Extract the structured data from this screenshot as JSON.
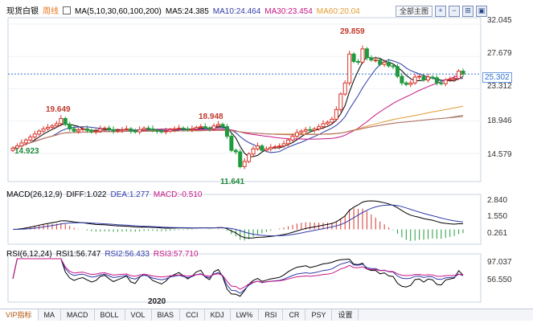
{
  "header": {
    "title": "现货白银",
    "period": "周线",
    "ma_params": "MA(5,10,30,60,100,200)",
    "ma5": "MA5:24.385",
    "ma10": "MA10:24.464",
    "ma30": "MA30:23.454",
    "ma60": "MA60:20.04"
  },
  "toolbar": {
    "select_label": "全部主图",
    "btn_plus": "+",
    "btn_minus": "−",
    "btn_expand": "⊞",
    "btn_square": "▣"
  },
  "price_panel": {
    "y_ticks": [
      "32.045",
      "27.679",
      "23.312",
      "18.946",
      "14.579"
    ],
    "current_price_label": "25.302",
    "annotations": {
      "high_main": "29.859",
      "high_left": "19.649",
      "high_mid": "18.948",
      "low_mid": "11.641",
      "low_left": "14.923"
    }
  },
  "macd_panel": {
    "title": "MACD(26,12,9)",
    "diff": "DIFF:1.022",
    "dea": "DEA:1.277",
    "macd": "MACD:-0.510",
    "y_ticks": [
      "2.840",
      "1.550",
      "0.261"
    ]
  },
  "rsi_panel": {
    "title": "RSI(6,12,24)",
    "rsi1": "RSI1:56.747",
    "rsi2": "RSI2:56.433",
    "rsi3": "RSI3:57.710",
    "y_ticks": [
      "97.037",
      "56.550"
    ]
  },
  "x_axis": {
    "year_label": "2020"
  },
  "tabs": [
    "VIP指标",
    "MA",
    "MACD",
    "BOLL",
    "VOL",
    "BIAS",
    "CCI",
    "KDJ",
    "LW%",
    "RSI",
    "CR",
    "PSY",
    "设置"
  ],
  "colors": {
    "up": "#d9342b",
    "down": "#1f9a3c",
    "ma5": "#000000",
    "ma10": "#2f3aa8",
    "ma30": "#c71585",
    "ma60": "#e39b2f",
    "ma100": "#9b8a6a",
    "ma200": "#b9746a",
    "accent": "#2f6fd1"
  },
  "chart_data": {
    "type": "candlestick",
    "title": "现货白银",
    "period": "weekly",
    "ylim": [
      11.0,
      32.045
    ],
    "y_ticks": [
      32.045,
      27.679,
      23.312,
      18.946,
      14.579
    ],
    "current_price": 25.302,
    "close_series": [
      15.3,
      15.6,
      16.0,
      16.4,
      16.8,
      17.2,
      17.6,
      17.9,
      18.1,
      18.3,
      18.6,
      19.3,
      18.5,
      17.9,
      17.6,
      17.8,
      17.9,
      17.7,
      17.5,
      17.6,
      17.9,
      18.0,
      17.8,
      17.6,
      17.7,
      17.8,
      17.9,
      17.6,
      17.5,
      17.8,
      18.0,
      17.9,
      17.7,
      17.6,
      17.5,
      17.6,
      17.8,
      17.9,
      18.0,
      17.9,
      17.8,
      17.9,
      18.1,
      18.2,
      18.0,
      17.9,
      18.3,
      18.5,
      18.2,
      16.9,
      15.0,
      14.8,
      12.8,
      13.5,
      14.5,
      15.2,
      15.6,
      15.0,
      15.2,
      15.4,
      15.5,
      15.6,
      15.9,
      16.4,
      16.9,
      17.4,
      17.6,
      17.8,
      17.7,
      17.9,
      18.2,
      18.6,
      18.8,
      19.2,
      20.5,
      22.6,
      24.1,
      28.0,
      27.0,
      26.9,
      28.7,
      27.5,
      27.2,
      27.2,
      26.6,
      26.9,
      26.4,
      26.3,
      25.0,
      24.1,
      23.9,
      24.1,
      24.9,
      25.0,
      24.5,
      24.9,
      24.8,
      24.1,
      24.0,
      24.5,
      24.6,
      24.7,
      25.7,
      25.3
    ],
    "key_values": {
      "high": 29.859,
      "high_2019": 19.649,
      "mid_high": 18.948,
      "low": 11.641,
      "start_low": 14.923
    },
    "moving_averages": {
      "MA5": 24.385,
      "MA10": 24.464,
      "MA30": 23.454,
      "MA60": 20.04
    },
    "macd": {
      "params": [
        26,
        12,
        9
      ],
      "DIFF": 1.022,
      "DEA": 1.277,
      "MACD": -0.51,
      "y_ticks": [
        2.84,
        1.55,
        0.261
      ]
    },
    "rsi": {
      "params": [
        6,
        12,
        24
      ],
      "RSI1": 56.747,
      "RSI2": 56.433,
      "RSI3": 57.71,
      "y_ticks": [
        97.037,
        56.55
      ]
    }
  }
}
